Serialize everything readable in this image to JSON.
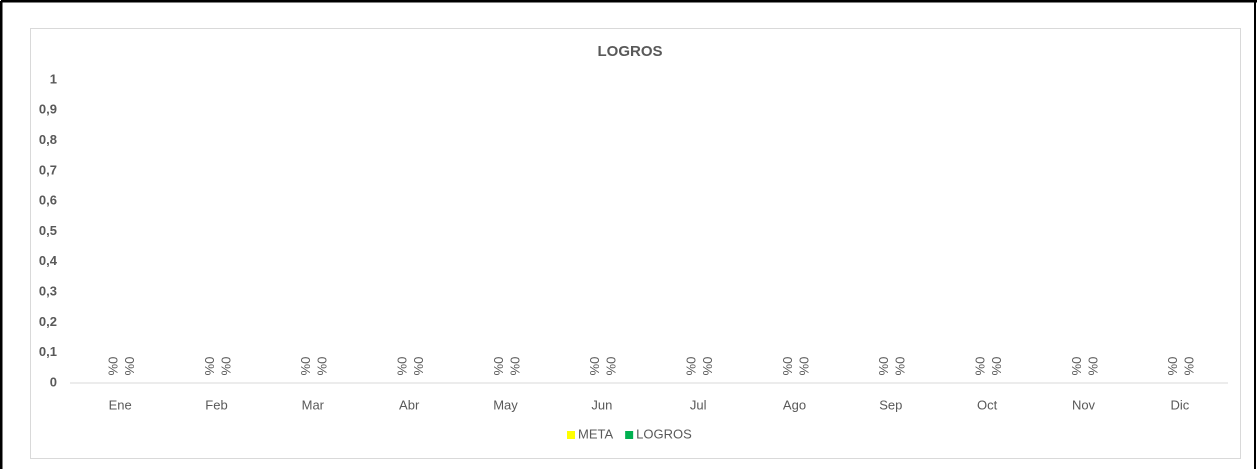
{
  "chart_data": {
    "type": "bar",
    "title": "LOGROS",
    "categories": [
      "Ene",
      "Feb",
      "Mar",
      "Abr",
      "May",
      "Jun",
      "Jul",
      "Ago",
      "Sep",
      "Oct",
      "Nov",
      "Dic"
    ],
    "series": [
      {
        "name": "META",
        "color": "#ffff00",
        "values": [
          0,
          0,
          0,
          0,
          0,
          0,
          0,
          0,
          0,
          0,
          0,
          0
        ],
        "value_labels": [
          "0%",
          "0%",
          "0%",
          "0%",
          "0%",
          "0%",
          "0%",
          "0%",
          "0%",
          "0%",
          "0%",
          "0%"
        ]
      },
      {
        "name": "LOGROS",
        "color": "#00b050",
        "values": [
          0,
          0,
          0,
          0,
          0,
          0,
          0,
          0,
          0,
          0,
          0,
          0
        ],
        "value_labels": [
          "0%",
          "0%",
          "0%",
          "0%",
          "0%",
          "0%",
          "0%",
          "0%",
          "0%",
          "0%",
          "0%",
          "0%"
        ]
      }
    ],
    "ylim": [
      0,
      1
    ],
    "yticks": [
      0,
      {
        "value": 0.1,
        "label": "0,1"
      },
      {
        "value": 0.2,
        "label": "0,2"
      },
      {
        "value": 0.3,
        "label": "0,3"
      },
      {
        "value": 0.4,
        "label": "0,4"
      },
      {
        "value": 0.5,
        "label": "0,5"
      },
      {
        "value": 0.6,
        "label": "0,6"
      },
      {
        "value": 0.7,
        "label": "0,7"
      },
      {
        "value": 0.8,
        "label": "0,8"
      },
      {
        "value": 0.9,
        "label": "0,9"
      },
      1
    ],
    "grid": false,
    "legend": "bottom"
  }
}
